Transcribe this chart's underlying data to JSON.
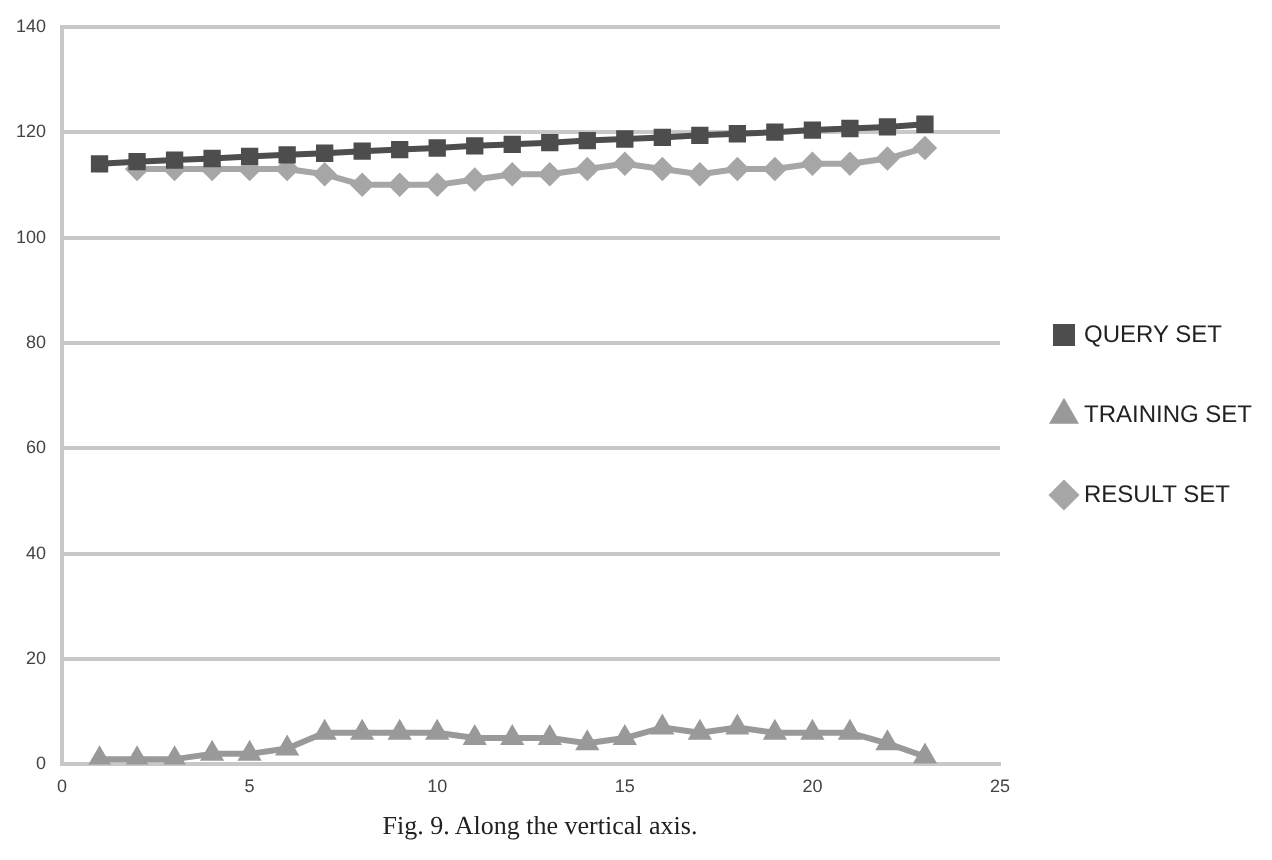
{
  "chart_data": {
    "type": "line",
    "annotations": [
      "Fig. 9. Along the vertical axis."
    ],
    "x": [
      1,
      2,
      3,
      4,
      5,
      6,
      7,
      8,
      9,
      10,
      11,
      12,
      13,
      14,
      15,
      16,
      17,
      18,
      19,
      20,
      21,
      22,
      23
    ],
    "xlim": [
      0,
      25
    ],
    "xticks": [
      0,
      5,
      10,
      15,
      20,
      25
    ],
    "ylim": [
      0,
      140
    ],
    "yticks": [
      0,
      20,
      40,
      60,
      80,
      100,
      120,
      140
    ],
    "grid": "y",
    "legend": "right",
    "series": [
      {
        "name": "QUERY SET",
        "color": "#4d4d4d",
        "marker": "square",
        "values": [
          114,
          114.4,
          114.7,
          115,
          115.4,
          115.7,
          116,
          116.4,
          116.7,
          117,
          117.4,
          117.7,
          118,
          118.4,
          118.7,
          119,
          119.4,
          119.7,
          120,
          120.4,
          120.7,
          121,
          121.5
        ]
      },
      {
        "name": "TRAINING SET",
        "color": "#999999",
        "marker": "triangle",
        "values": [
          1,
          1,
          1,
          2,
          2,
          3,
          6,
          6,
          6,
          6,
          5,
          5,
          5,
          4,
          5,
          7,
          6,
          7,
          6,
          6,
          6,
          4,
          1.5
        ]
      },
      {
        "name": "RESULT SET",
        "color": "#a6a6a6",
        "marker": "diamond",
        "values": [
          null,
          113,
          113,
          113,
          113,
          113,
          112,
          110,
          110,
          110,
          111,
          112,
          112,
          113,
          114,
          113,
          112,
          113,
          113,
          114,
          114,
          115,
          117
        ]
      }
    ]
  }
}
